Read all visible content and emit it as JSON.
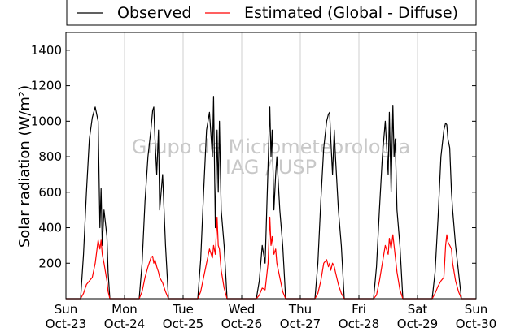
{
  "chart_data": {
    "type": "line",
    "ylabel": "Solar radiation (W/m²)",
    "ylim": [
      0,
      1500
    ],
    "yticks": [
      200,
      400,
      600,
      800,
      1000,
      1200,
      1400
    ],
    "xlim": [
      0,
      7
    ],
    "xticks": [
      {
        "day": "Sun",
        "date": "Oct-23"
      },
      {
        "day": "Mon",
        "date": "Oct-24"
      },
      {
        "day": "Tue",
        "date": "Oct-25"
      },
      {
        "day": "Wed",
        "date": "Oct-26"
      },
      {
        "day": "Thu",
        "date": "Oct-27"
      },
      {
        "day": "Fri",
        "date": "Oct-28"
      },
      {
        "day": "Sat",
        "date": "Oct-29"
      },
      {
        "day": "Sun",
        "date": "Oct-30"
      }
    ],
    "grid": "vertical",
    "legend_position": "top",
    "watermark": [
      "Grupo de Micrometeorologia",
      "IAG / USP"
    ],
    "series": [
      {
        "name": "Observed",
        "color": "#000000",
        "daily_peaks": [
          1080,
          1080,
          1140,
          1080,
          1050,
          1090,
          990
        ],
        "x": [
          0.25,
          0.3,
          0.35,
          0.4,
          0.45,
          0.5,
          0.55,
          0.58,
          0.6,
          0.62,
          0.65,
          0.7,
          0.72,
          0.75,
          1.25,
          1.3,
          1.35,
          1.4,
          1.45,
          1.48,
          1.5,
          1.52,
          1.55,
          1.58,
          1.6,
          1.65,
          1.7,
          1.75,
          2.25,
          2.3,
          2.35,
          2.4,
          2.45,
          2.5,
          2.52,
          2.55,
          2.58,
          2.6,
          2.62,
          2.65,
          2.7,
          2.75,
          3.25,
          3.3,
          3.35,
          3.4,
          3.45,
          3.48,
          3.5,
          3.52,
          3.55,
          3.58,
          3.6,
          3.65,
          3.7,
          3.75,
          4.25,
          4.3,
          4.35,
          4.4,
          4.45,
          4.48,
          4.5,
          4.52,
          4.55,
          4.58,
          4.6,
          4.65,
          4.7,
          4.75,
          5.25,
          5.3,
          5.35,
          5.4,
          5.45,
          5.5,
          5.52,
          5.55,
          5.58,
          5.6,
          5.62,
          5.65,
          5.7,
          5.75,
          6.25,
          6.3,
          6.35,
          6.4,
          6.45,
          6.48,
          6.5,
          6.52,
          6.55,
          6.58,
          6.6,
          6.65,
          6.7,
          6.75
        ],
        "y": [
          0,
          250,
          600,
          900,
          1020,
          1080,
          1000,
          400,
          620,
          300,
          500,
          350,
          150,
          0,
          0,
          200,
          550,
          800,
          950,
          1060,
          1080,
          900,
          700,
          950,
          500,
          700,
          300,
          0,
          0,
          220,
          600,
          950,
          1050,
          800,
          1140,
          400,
          950,
          600,
          1000,
          500,
          300,
          0,
          0,
          100,
          300,
          200,
          750,
          1080,
          800,
          950,
          500,
          700,
          800,
          500,
          300,
          0,
          0,
          200,
          550,
          850,
          1000,
          1040,
          1050,
          900,
          700,
          950,
          800,
          500,
          300,
          0,
          0,
          180,
          500,
          800,
          1000,
          700,
          1050,
          600,
          1090,
          800,
          900,
          500,
          300,
          0,
          0,
          150,
          450,
          800,
          950,
          990,
          980,
          900,
          850,
          600,
          500,
          300,
          150,
          0
        ]
      },
      {
        "name": "Estimated (Global - Diffuse)",
        "color": "#ff0000",
        "daily_peaks": [
          330,
          240,
          460,
          460,
          220,
          360,
          360
        ],
        "x": [
          0.25,
          0.3,
          0.35,
          0.4,
          0.45,
          0.5,
          0.55,
          0.58,
          0.6,
          0.62,
          0.65,
          0.7,
          0.72,
          0.75,
          1.25,
          1.3,
          1.35,
          1.4,
          1.45,
          1.48,
          1.5,
          1.52,
          1.55,
          1.58,
          1.6,
          1.65,
          1.7,
          1.75,
          2.25,
          2.3,
          2.35,
          2.4,
          2.45,
          2.5,
          2.52,
          2.55,
          2.58,
          2.6,
          2.62,
          2.65,
          2.7,
          2.75,
          3.25,
          3.3,
          3.35,
          3.4,
          3.45,
          3.48,
          3.5,
          3.52,
          3.55,
          3.58,
          3.6,
          3.65,
          3.7,
          3.75,
          4.25,
          4.3,
          4.35,
          4.4,
          4.45,
          4.48,
          4.5,
          4.52,
          4.55,
          4.58,
          4.6,
          4.65,
          4.7,
          4.75,
          5.25,
          5.3,
          5.35,
          5.4,
          5.45,
          5.5,
          5.52,
          5.55,
          5.58,
          5.6,
          5.62,
          5.65,
          5.7,
          5.75,
          6.25,
          6.3,
          6.35,
          6.4,
          6.45,
          6.48,
          6.5,
          6.52,
          6.55,
          6.58,
          6.6,
          6.65,
          6.7,
          6.75
        ],
        "y": [
          0,
          30,
          80,
          100,
          120,
          200,
          330,
          280,
          330,
          250,
          200,
          100,
          40,
          0,
          0,
          40,
          120,
          180,
          230,
          240,
          200,
          220,
          180,
          150,
          120,
          90,
          40,
          0,
          0,
          40,
          120,
          200,
          280,
          230,
          300,
          250,
          460,
          300,
          280,
          160,
          60,
          0,
          0,
          20,
          60,
          50,
          200,
          460,
          300,
          350,
          250,
          280,
          200,
          120,
          40,
          0,
          0,
          30,
          100,
          200,
          220,
          180,
          200,
          160,
          200,
          180,
          150,
          80,
          30,
          0,
          0,
          20,
          100,
          200,
          300,
          250,
          340,
          280,
          360,
          300,
          240,
          150,
          50,
          0,
          0,
          30,
          70,
          100,
          120,
          300,
          360,
          320,
          300,
          280,
          200,
          100,
          40,
          0
        ]
      }
    ]
  }
}
